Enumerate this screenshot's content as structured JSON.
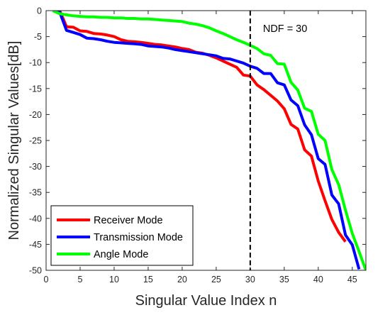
{
  "chart_data": {
    "type": "line",
    "title": "",
    "xlabel": "Singular Value Index n",
    "ylabel": "Normalized Singular Values[dB]",
    "xlim": [
      0,
      47
    ],
    "ylim": [
      -50,
      0
    ],
    "xticks": [
      0,
      5,
      10,
      15,
      20,
      25,
      30,
      35,
      40,
      45
    ],
    "yticks": [
      0,
      -5,
      -10,
      -15,
      -20,
      -25,
      -30,
      -35,
      -40,
      -45,
      -50
    ],
    "grid": false,
    "legend_position": "bottom-left",
    "annotation": {
      "text": "NDF = 30",
      "vline_x": 30,
      "style": "dashed"
    },
    "series": [
      {
        "name": "Receiver Mode",
        "color": "#ff0000",
        "x": [
          1,
          2,
          3,
          4,
          5,
          6,
          7,
          8,
          9,
          10,
          11,
          12,
          13,
          14,
          15,
          16,
          17,
          18,
          19,
          20,
          21,
          22,
          23,
          24,
          25,
          26,
          27,
          28,
          29,
          30,
          31,
          32,
          33,
          34,
          35,
          36,
          37,
          38,
          39,
          40,
          41,
          42,
          43,
          44
        ],
        "values": [
          0,
          0,
          -3.1,
          -3.2,
          -3.9,
          -4.0,
          -4.4,
          -4.5,
          -4.7,
          -5.0,
          -5.6,
          -5.9,
          -6.0,
          -6.1,
          -6.3,
          -6.5,
          -6.6,
          -6.8,
          -7.0,
          -7.3,
          -7.5,
          -8.0,
          -8.2,
          -8.6,
          -9.1,
          -9.7,
          -10.3,
          -10.9,
          -12.4,
          -12.6,
          -14.3,
          -15.2,
          -16.3,
          -17.4,
          -18.9,
          -21.9,
          -22.8,
          -26.8,
          -28.0,
          -32.8,
          -36.6,
          -40.2,
          -42.7,
          -44.5
        ]
      },
      {
        "name": "Transmission Mode",
        "color": "#0000ff",
        "x": [
          1,
          2,
          3,
          4,
          5,
          6,
          7,
          8,
          9,
          10,
          11,
          12,
          13,
          14,
          15,
          16,
          17,
          18,
          19,
          20,
          21,
          22,
          23,
          24,
          25,
          26,
          27,
          28,
          29,
          30,
          31,
          32,
          33,
          34,
          35,
          36,
          37,
          38,
          39,
          40,
          41,
          42,
          43,
          44,
          45,
          46
        ],
        "values": [
          0,
          -0.3,
          -3.8,
          -4.2,
          -4.6,
          -5.3,
          -5.4,
          -5.6,
          -5.9,
          -6.1,
          -6.2,
          -6.3,
          -6.4,
          -6.5,
          -6.8,
          -6.9,
          -7.0,
          -7.2,
          -7.5,
          -7.7,
          -7.9,
          -8.1,
          -8.3,
          -8.5,
          -8.7,
          -9.2,
          -9.3,
          -9.7,
          -10.1,
          -10.7,
          -11.1,
          -12.1,
          -12.1,
          -13.9,
          -14.3,
          -17.2,
          -18.3,
          -22.0,
          -23.9,
          -28.5,
          -29.6,
          -35.5,
          -37.2,
          -43.2,
          -45.1,
          -49.8
        ]
      },
      {
        "name": "Angle Mode",
        "color": "#00ff00",
        "x": [
          1,
          2,
          3,
          4,
          5,
          6,
          7,
          8,
          9,
          10,
          11,
          12,
          13,
          14,
          15,
          16,
          17,
          18,
          19,
          20,
          21,
          22,
          23,
          24,
          25,
          26,
          27,
          28,
          29,
          30,
          31,
          32,
          33,
          34,
          35,
          36,
          37,
          38,
          39,
          40,
          41,
          42,
          43,
          44,
          45,
          46,
          47
        ],
        "values": [
          0,
          -0.6,
          -0.8,
          -1.0,
          -1.1,
          -1.2,
          -1.2,
          -1.3,
          -1.3,
          -1.4,
          -1.4,
          -1.5,
          -1.5,
          -1.6,
          -1.6,
          -1.7,
          -1.8,
          -1.9,
          -2.0,
          -2.1,
          -2.4,
          -2.6,
          -2.9,
          -3.3,
          -3.9,
          -4.4,
          -5.0,
          -5.6,
          -6.1,
          -6.7,
          -7.3,
          -8.3,
          -8.6,
          -10.2,
          -10.3,
          -13.8,
          -15.3,
          -18.8,
          -19.4,
          -23.8,
          -25.0,
          -30.6,
          -33.5,
          -38.4,
          -42.9,
          -46.4,
          -50
        ]
      }
    ]
  }
}
